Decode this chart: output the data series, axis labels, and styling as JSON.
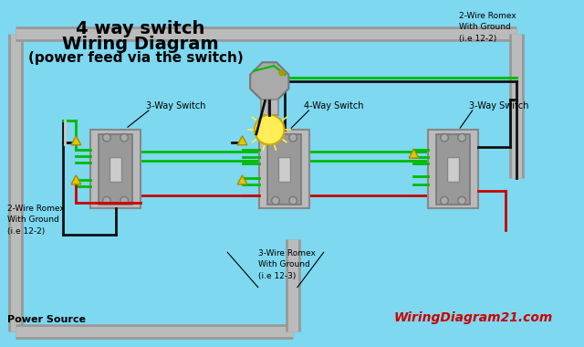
{
  "title_line1": "4 way switch",
  "title_line2": "Wiring Diagram",
  "title_line3": "(power feed via the switch)",
  "bg_color": "#7dd8f0",
  "conduit_dark": "#999999",
  "conduit_light": "#bbbbbb",
  "switch_outer": "#aaaaaa",
  "switch_inner": "#bbbbbb",
  "switch_face": "#cccccc",
  "wire_green": "#00bb00",
  "wire_black": "#111111",
  "wire_red": "#cc0000",
  "wire_white": "#cccccc",
  "wire_bare": "#ddbb00",
  "nut_yellow": "#ddcc00",
  "label_3way_left": "3-Way Switch",
  "label_4way": "4-Way Switch",
  "label_3way_right": "3-Way Switch",
  "label_power": "Power Source",
  "label_2wire_left": "2-Wire Romex\nWith Ground\n(i.e 12-2)",
  "label_2wire_top": "2-Wire Romex\nWith Ground\n(i.e 12-2)",
  "label_3wire": "3-Wire Romex\nWith Ground\n(i.e 12-3)",
  "watermark": "WiringDiagram21.com",
  "watermark_color": "#cc0000",
  "title_color": "#000000"
}
